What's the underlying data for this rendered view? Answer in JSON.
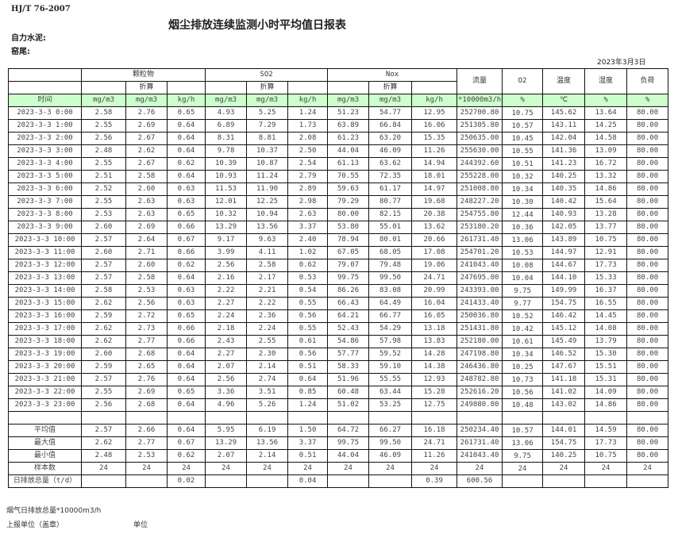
{
  "standard": "HJ/T   76-2007",
  "title": "烟尘排放连续监测小时平均值日报表",
  "company_label": "自力水泥:",
  "kiln_label": "窑尾:",
  "date": "2023年3月3日",
  "colors": {
    "units_row_bg": "#ccffcc",
    "border": "#111111"
  },
  "header": {
    "particulate": "颗粒物",
    "so2": "SO2",
    "nox": "Nox",
    "flow": "流量",
    "o2": "O2",
    "temp": "温度",
    "humidity": "湿度",
    "load": "负荷",
    "converted": "折算"
  },
  "units": [
    "时间",
    "mg/m3",
    "mg/m3",
    "kg/h",
    "mg/m3",
    "mg/m3",
    "kg/h",
    "mg/m3",
    "mg/m3",
    "kg/h",
    "*10000m3/h",
    "%",
    "℃",
    "%",
    "%"
  ],
  "rows": [
    [
      "2023-3-3 0:00",
      "2.58",
      "2.76",
      "0.65",
      "4.93",
      "5.25",
      "1.24",
      "51.23",
      "54.77",
      "12.95",
      "252700.80",
      "10.75",
      "145.62",
      "13.64",
      "80.00"
    ],
    [
      "2023-3-3 1:00",
      "2.55",
      "2.69",
      "0.64",
      "6.89",
      "7.29",
      "1.73",
      "63.89",
      "66.84",
      "16.06",
      "251305.80",
      "10.57",
      "143.11",
      "14.25",
      "80.00"
    ],
    [
      "2023-3-3 2:00",
      "2.56",
      "2.67",
      "0.64",
      "8.31",
      "8.81",
      "2.08",
      "61.23",
      "63.20",
      "15.35",
      "250635.00",
      "10.45",
      "142.04",
      "14.58",
      "80.00"
    ],
    [
      "2023-3-3 3:00",
      "2.48",
      "2.62",
      "0.64",
      "9.78",
      "10.37",
      "2.50",
      "44.04",
      "46.09",
      "11.26",
      "255630.00",
      "10.55",
      "141.36",
      "13.09",
      "80.00"
    ],
    [
      "2023-3-3 4:00",
      "2.55",
      "2.67",
      "0.62",
      "10.39",
      "10.87",
      "2.54",
      "61.13",
      "63.62",
      "14.94",
      "244392.60",
      "10.51",
      "141.23",
      "16.72",
      "80.00"
    ],
    [
      "2023-3-3 5:00",
      "2.51",
      "2.58",
      "0.64",
      "10.93",
      "11.24",
      "2.79",
      "70.55",
      "72.35",
      "18.01",
      "255228.00",
      "10.32",
      "140.25",
      "13.32",
      "80.00"
    ],
    [
      "2023-3-3 6:00",
      "2.52",
      "2.60",
      "0.63",
      "11.53",
      "11.90",
      "2.89",
      "59.63",
      "61.17",
      "14.97",
      "251008.80",
      "10.34",
      "140.35",
      "14.86",
      "80.00"
    ],
    [
      "2023-3-3 7:00",
      "2.55",
      "2.63",
      "0.63",
      "12.01",
      "12.25",
      "2.98",
      "79.29",
      "80.77",
      "19.68",
      "248227.20",
      "10.30",
      "140.42",
      "15.64",
      "80.00"
    ],
    [
      "2023-3-3 8:00",
      "2.53",
      "2.63",
      "0.65",
      "10.32",
      "10.94",
      "2.63",
      "80.00",
      "82.15",
      "20.38",
      "254755.80",
      "12.44",
      "140.93",
      "13.28",
      "80.00"
    ],
    [
      "2023-3-3 9:00",
      "2.60",
      "2.69",
      "0.66",
      "13.29",
      "13.56",
      "3.37",
      "53.80",
      "55.01",
      "13.62",
      "253180.20",
      "10.36",
      "142.05",
      "13.77",
      "80.00"
    ],
    [
      "2023-3-3 10:00",
      "2.57",
      "2.64",
      "0.67",
      "9.17",
      "9.63",
      "2.40",
      "78.94",
      "80.01",
      "20.66",
      "261731.40",
      "13.06",
      "143.89",
      "10.75",
      "80.00"
    ],
    [
      "2023-3-3 11:00",
      "2.60",
      "2.71",
      "0.66",
      "3.99",
      "4.11",
      "1.02",
      "67.05",
      "68.05",
      "17.08",
      "254701.20",
      "10.53",
      "144.97",
      "12.91",
      "80.00"
    ],
    [
      "2023-3-3 12:00",
      "2.57",
      "2.60",
      "0.62",
      "2.56",
      "2.58",
      "0.62",
      "79.07",
      "79.48",
      "19.06",
      "241043.40",
      "10.08",
      "144.67",
      "17.73",
      "80.00"
    ],
    [
      "2023-3-3 13:00",
      "2.57",
      "2.58",
      "0.64",
      "2.16",
      "2.17",
      "0.53",
      "99.75",
      "99.50",
      "24.71",
      "247695.00",
      "10.04",
      "144.10",
      "15.33",
      "80.00"
    ],
    [
      "2023-3-3 14:00",
      "2.58",
      "2.53",
      "0.63",
      "2.22",
      "2.21",
      "0.54",
      "86.26",
      "83.08",
      "20.99",
      "243393.00",
      "9.75",
      "149.99",
      "16.37",
      "80.00"
    ],
    [
      "2023-3-3 15:00",
      "2.62",
      "2.56",
      "0.63",
      "2.27",
      "2.22",
      "0.55",
      "66.43",
      "64.49",
      "16.04",
      "241433.40",
      "9.77",
      "154.75",
      "16.55",
      "80.00"
    ],
    [
      "2023-3-3 16:00",
      "2.59",
      "2.72",
      "0.65",
      "2.24",
      "2.36",
      "0.56",
      "64.21",
      "66.77",
      "16.05",
      "250036.80",
      "10.52",
      "146.42",
      "14.45",
      "80.00"
    ],
    [
      "2023-3-3 17:00",
      "2.62",
      "2.73",
      "0.66",
      "2.18",
      "2.24",
      "0.55",
      "52.43",
      "54.29",
      "13.18",
      "251431.80",
      "10.42",
      "145.12",
      "14.08",
      "80.00"
    ],
    [
      "2023-3-3 18:00",
      "2.62",
      "2.77",
      "0.66",
      "2.43",
      "2.55",
      "0.61",
      "54.86",
      "57.98",
      "13.83",
      "252180.00",
      "10.61",
      "145.49",
      "13.79",
      "80.00"
    ],
    [
      "2023-3-3 19:00",
      "2.60",
      "2.68",
      "0.64",
      "2.27",
      "2.30",
      "0.56",
      "57.77",
      "59.52",
      "14.28",
      "247198.80",
      "10.34",
      "146.52",
      "15.30",
      "80.00"
    ],
    [
      "2023-3-3 20:00",
      "2.59",
      "2.65",
      "0.64",
      "2.07",
      "2.14",
      "0.51",
      "58.33",
      "59.10",
      "14.38",
      "246436.80",
      "10.25",
      "147.67",
      "15.51",
      "80.00"
    ],
    [
      "2023-3-3 21:00",
      "2.57",
      "2.76",
      "0.64",
      "2.56",
      "2.74",
      "0.64",
      "51.96",
      "55.55",
      "12.93",
      "248782.80",
      "10.73",
      "141.18",
      "15.31",
      "80.00"
    ],
    [
      "2023-3-3 22:00",
      "2.55",
      "2.69",
      "0.65",
      "3.36",
      "3.51",
      "0.85",
      "60.48",
      "63.44",
      "15.28",
      "252616.20",
      "10.56",
      "141.02",
      "14.09",
      "80.00"
    ],
    [
      "2023-3-3 23:00",
      "2.56",
      "2.68",
      "0.64",
      "4.96",
      "5.26",
      "1.24",
      "51.02",
      "53.25",
      "12.75",
      "249880.80",
      "10.48",
      "143.02",
      "14.86",
      "80.00"
    ]
  ],
  "summary": [
    [
      "平均值",
      "2.57",
      "2.66",
      "0.64",
      "5.95",
      "6.19",
      "1.50",
      "64.72",
      "66.27",
      "16.18",
      "250234.40",
      "10.57",
      "144.01",
      "14.59",
      "80.00"
    ],
    [
      "最大值",
      "2.62",
      "2.77",
      "0.67",
      "13.29",
      "13.56",
      "3.37",
      "99.75",
      "99.50",
      "24.71",
      "261731.40",
      "13.06",
      "154.75",
      "17.73",
      "80.00"
    ],
    [
      "最小值",
      "2.48",
      "2.53",
      "0.62",
      "2.07",
      "2.14",
      "0.51",
      "44.04",
      "46.09",
      "11.26",
      "241043.40",
      "9.75",
      "140.25",
      "10.75",
      "80.00"
    ],
    [
      "样本数",
      "24",
      "24",
      "24",
      "24",
      "24",
      "24",
      "24",
      "24",
      "24",
      "24",
      "24",
      "24",
      "24",
      "24"
    ],
    [
      "日排放总量（t/d）",
      "",
      "",
      "0.02",
      "",
      "",
      "0.04",
      "",
      "",
      "0.39",
      "600.56",
      "",
      "",
      "",
      ""
    ]
  ],
  "footer": {
    "flue_gas_total": "烟气日排放总量*10000m3/h",
    "reporting_unit": "上报单位（盖章）",
    "unit": "单位"
  }
}
